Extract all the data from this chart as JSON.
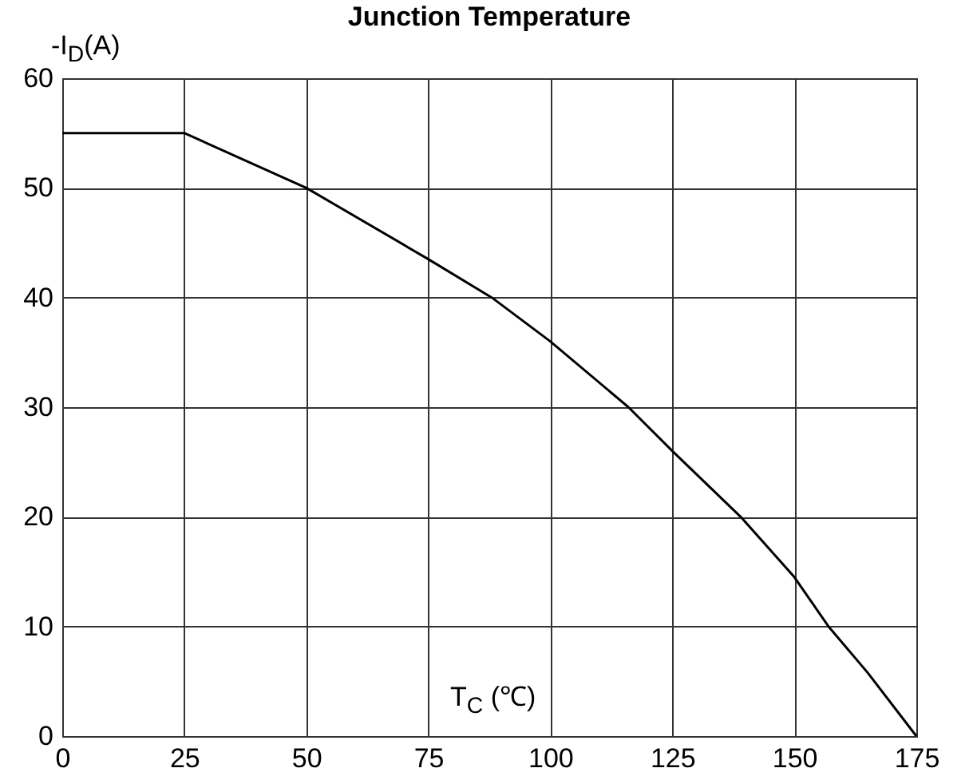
{
  "chart_data": {
    "type": "line",
    "title": "Junction Temperature",
    "xlabel": "T$_{C}$ (℃)",
    "ylabel": "-I$_{D}$(A)",
    "x": [
      0,
      25,
      50,
      75,
      88,
      100,
      116,
      125,
      139,
      150,
      157,
      165,
      175
    ],
    "series": [
      {
        "color": "#000000",
        "values": [
          55,
          55,
          50,
          43.5,
          40,
          36,
          30,
          26,
          20,
          14.5,
          10,
          5.8,
          0
        ]
      }
    ],
    "xlim": [
      0,
      175
    ],
    "xticks": [
      0,
      25,
      50,
      75,
      100,
      125,
      150,
      175
    ],
    "ylim": [
      0,
      60
    ],
    "yticks": [
      0,
      10,
      20,
      30,
      40,
      50,
      60
    ],
    "grid": true,
    "marker": "none",
    "line_style": "solid"
  }
}
